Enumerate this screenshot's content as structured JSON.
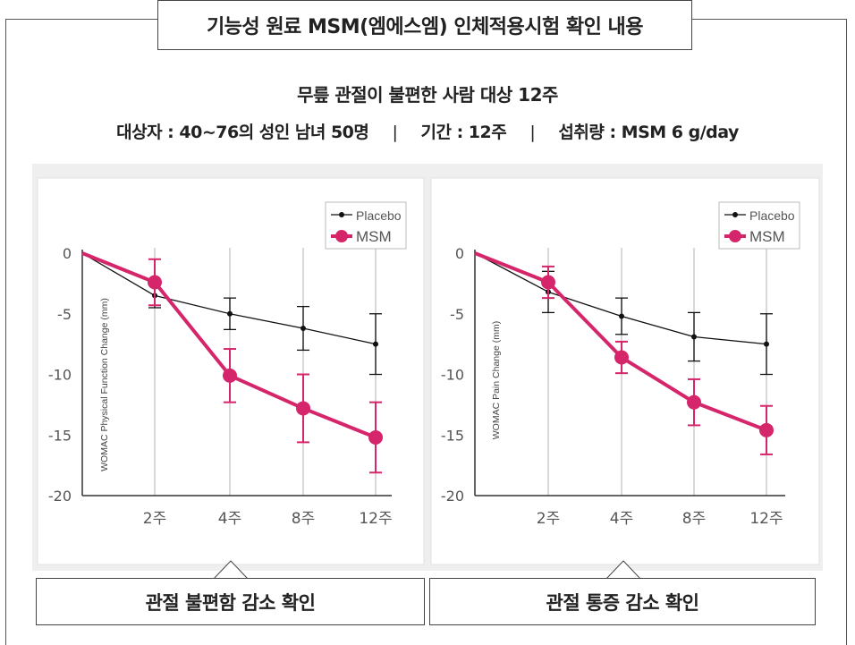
{
  "title": "기능성 원료 MSM(엠에스엠) 인체적용시험 확인 내용",
  "subtitle_line1": "무릎 관절이 불편한 사람 대상 12주",
  "subtitle_line2": {
    "subjects": "대상자 : 40~76의 성인 남녀 50명",
    "separator": "|",
    "period": "기간 : 12주",
    "dose": "섭취량 : MSM 6 g/day"
  },
  "colors": {
    "placebo": "#111111",
    "msm": "#d6266b",
    "grid": "#cccccc",
    "panel_bg": "#efefef"
  },
  "chart_data": [
    {
      "type": "line",
      "caption": "관절 불편함 감소 확인",
      "ylabel": "WOMAC Physical Function Change (mm)",
      "categories": [
        "",
        "2주",
        "4주",
        "8주",
        "12주"
      ],
      "x": [
        0,
        2,
        4,
        8,
        12
      ],
      "ylim": [
        -20,
        0
      ],
      "yticks": [
        "0",
        "-5",
        "-10",
        "-15",
        "-20"
      ],
      "ytick_values": [
        0,
        -5,
        -10,
        -15,
        -20
      ],
      "grid": "vertical",
      "legend": "top-right",
      "series": [
        {
          "name": "Placebo",
          "values": [
            0,
            -3.5,
            -5.0,
            -6.2,
            -7.5
          ],
          "error": [
            0,
            1.0,
            1.3,
            1.8,
            2.5
          ]
        },
        {
          "name": "MSM",
          "values": [
            0,
            -2.4,
            -10.1,
            -12.8,
            -15.2
          ],
          "error": [
            0,
            1.9,
            2.2,
            2.8,
            2.9
          ]
        }
      ]
    },
    {
      "type": "line",
      "caption": "관절 통증 감소 확인",
      "ylabel": "WOMAC Pain Change (mm)",
      "categories": [
        "",
        "2주",
        "4주",
        "8주",
        "12주"
      ],
      "x": [
        0,
        2,
        4,
        8,
        12
      ],
      "ylim": [
        -20,
        0
      ],
      "yticks": [
        "0",
        "-5",
        "-10",
        "-15",
        "-20"
      ],
      "ytick_values": [
        0,
        -5,
        -10,
        -15,
        -20
      ],
      "grid": "vertical",
      "legend": "top-right",
      "series": [
        {
          "name": "Placebo",
          "values": [
            0,
            -3.2,
            -5.2,
            -6.9,
            -7.5
          ],
          "error": [
            0,
            1.7,
            1.5,
            2.0,
            2.5
          ]
        },
        {
          "name": "MSM",
          "values": [
            0,
            -2.4,
            -8.6,
            -12.3,
            -14.6
          ],
          "error": [
            0,
            1.3,
            1.3,
            1.9,
            2.0
          ]
        }
      ]
    }
  ]
}
